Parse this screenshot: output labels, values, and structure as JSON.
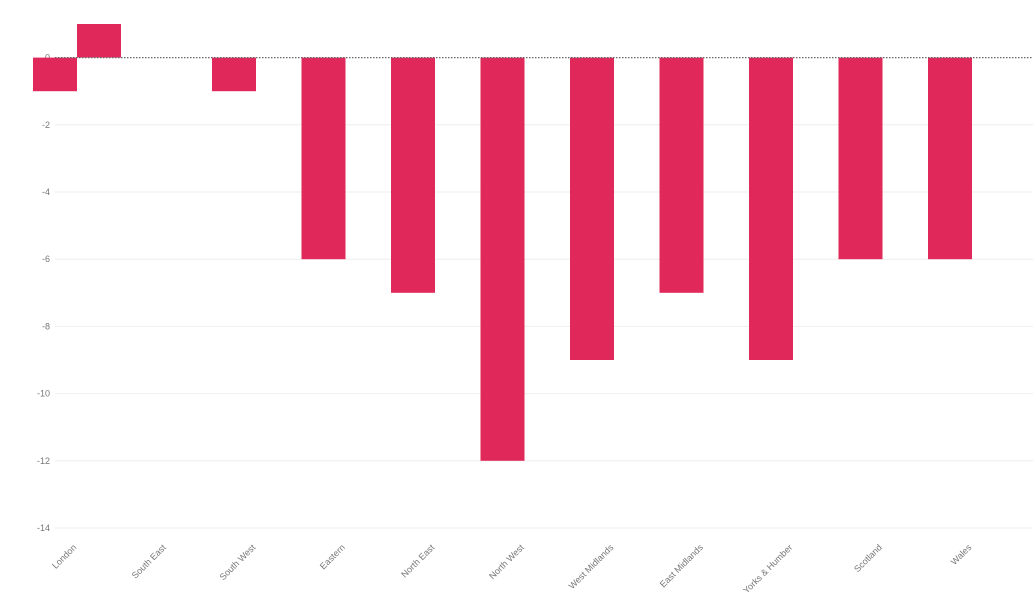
{
  "chart_data": {
    "type": "bar",
    "title": "",
    "xlabel": "",
    "ylabel": "",
    "categories": [
      "London",
      "South East",
      "South West",
      "Eastern",
      "North East",
      "North West",
      "West Midlands",
      "East Midlands",
      "Yorks & Humber",
      "Scotland",
      "Wales"
    ],
    "series": [
      {
        "values": [
          -1,
          0,
          -1,
          -6,
          -7,
          -12,
          -9,
          -7,
          -9,
          -6,
          -6
        ],
        "color": "#e0285a"
      },
      {
        "values": [
          1,
          0,
          0,
          0,
          0,
          0,
          0,
          0,
          0,
          0,
          0
        ],
        "color": "#e0285a"
      }
    ],
    "yticks": [
      0,
      -2,
      -4,
      -6,
      -8,
      -10,
      -12,
      -14
    ],
    "ylim": [
      -14,
      1
    ],
    "grid": true,
    "legend": "none",
    "zero_line": "dotted"
  }
}
